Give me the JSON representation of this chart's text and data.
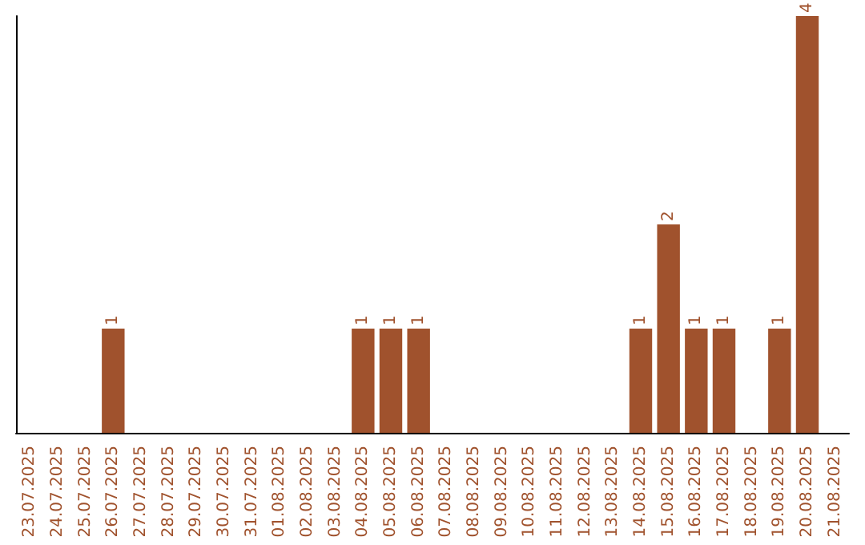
{
  "chart_data": {
    "type": "bar",
    "categories": [
      "23.07.2025",
      "24.07.2025",
      "25.07.2025",
      "26.07.2025",
      "27.07.2025",
      "28.07.2025",
      "29.07.2025",
      "30.07.2025",
      "31.07.2025",
      "01.08.2025",
      "02.08.2025",
      "03.08.2025",
      "04.08.2025",
      "05.08.2025",
      "06.08.2025",
      "07.08.2025",
      "08.08.2025",
      "09.08.2025",
      "10.08.2025",
      "11.08.2025",
      "12.08.2025",
      "13.08.2025",
      "14.08.2025",
      "15.08.2025",
      "16.08.2025",
      "17.08.2025",
      "18.08.2025",
      "19.08.2025",
      "20.08.2025",
      "21.08.2025"
    ],
    "values": [
      0,
      0,
      0,
      1,
      0,
      0,
      0,
      0,
      0,
      0,
      0,
      0,
      1,
      1,
      1,
      0,
      0,
      0,
      0,
      0,
      0,
      0,
      1,
      2,
      1,
      1,
      0,
      1,
      4,
      0
    ],
    "value_labels": [
      null,
      null,
      null,
      "1",
      null,
      null,
      null,
      null,
      null,
      null,
      null,
      null,
      "1",
      "1",
      "1",
      null,
      null,
      null,
      null,
      null,
      null,
      null,
      "1",
      "2",
      "1",
      "1",
      null,
      "1",
      "4",
      null
    ],
    "color": "#a0522d",
    "ylim": [
      0,
      4
    ],
    "tick_labels": "x"
  }
}
